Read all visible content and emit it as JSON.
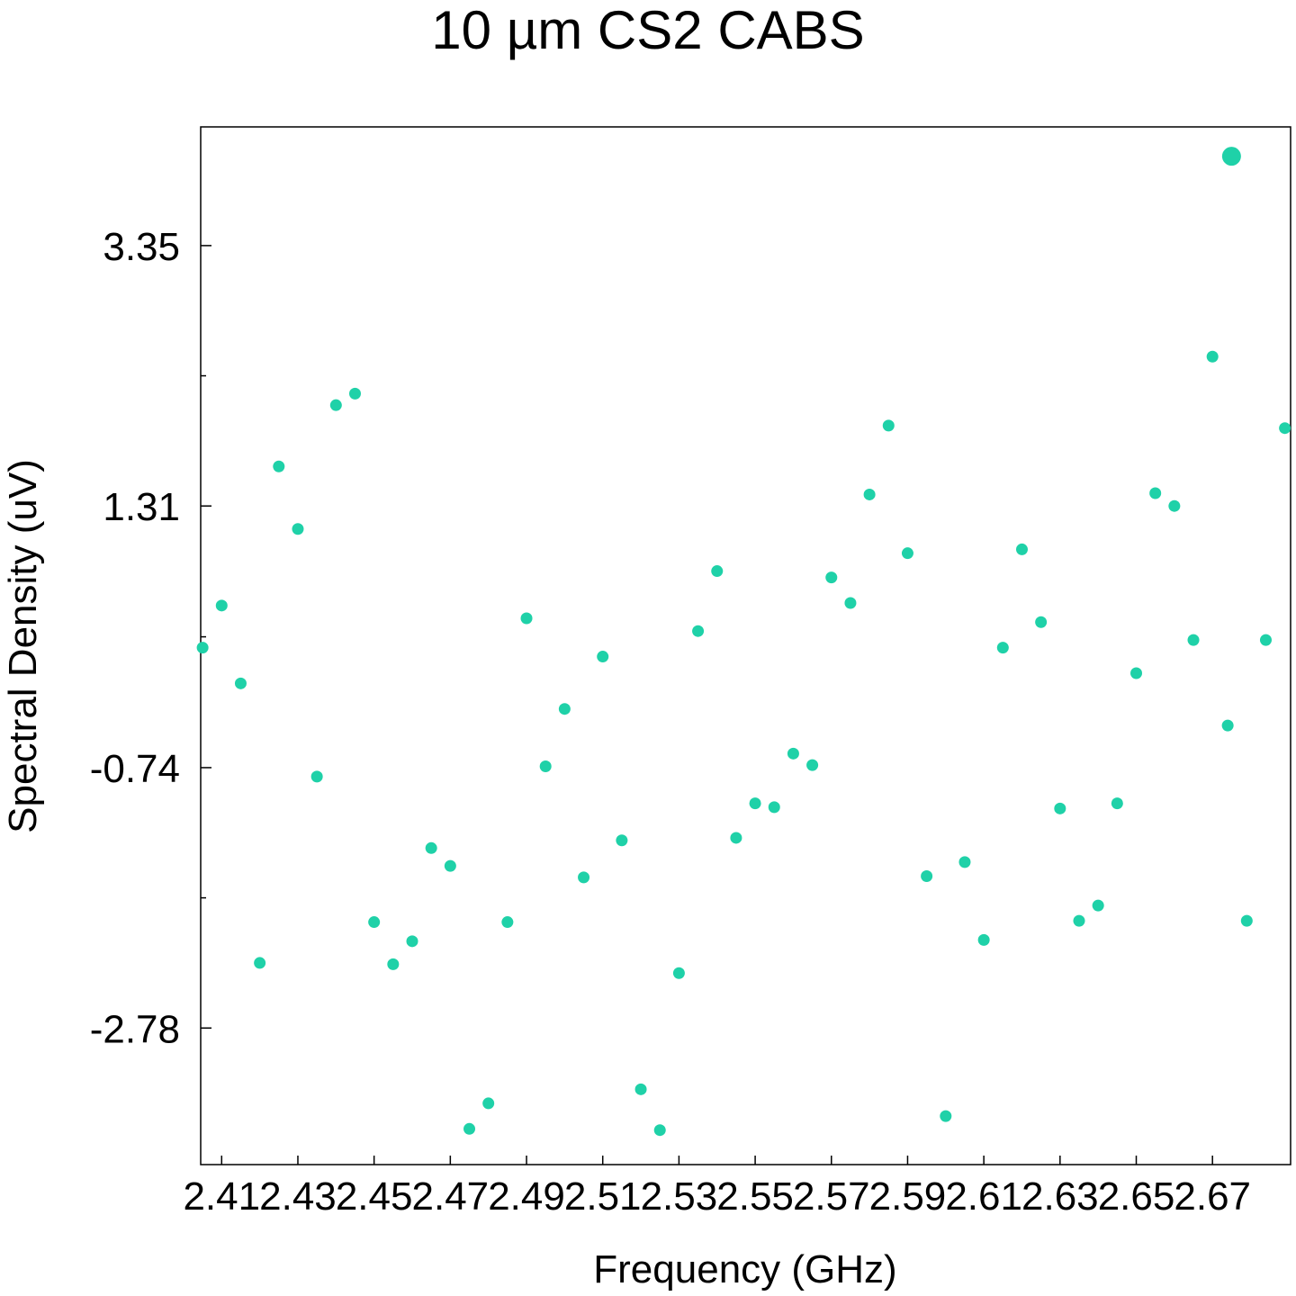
{
  "chart_data": {
    "type": "scatter",
    "title": "10 µm CS2 CABS",
    "xlabel": "Frequency (GHz)",
    "ylabel": "Spectral Density (uV)",
    "xlim": [
      2.4045,
      2.6905
    ],
    "ylim": [
      -3.85,
      4.28
    ],
    "x_ticks": [
      2.41,
      2.43,
      2.45,
      2.47,
      2.49,
      2.51,
      2.53,
      2.55,
      2.57,
      2.59,
      2.61,
      2.63,
      2.65,
      2.67
    ],
    "x_tick_labels": [
      "2.41",
      "2.43",
      "2.45",
      "2.47",
      "2.49",
      "2.51",
      "2.53",
      "2.55",
      "2.57",
      "2.59",
      "2.61",
      "2.63",
      "2.65",
      "2.67"
    ],
    "y_ticks": [
      3.35,
      1.31,
      -0.74,
      -2.78
    ],
    "y_tick_labels": [
      "3.35",
      "1.31",
      "-0.74",
      "-2.78"
    ],
    "y_minor_ticks": [
      2.33,
      0.285,
      -1.76
    ],
    "grid": false,
    "marker_color": "#1fd1a8",
    "series": [
      {
        "points": [
          [
            2.405,
            0.2
          ],
          [
            2.41,
            0.53
          ],
          [
            2.415,
            -0.08
          ],
          [
            2.42,
            -2.27
          ],
          [
            2.425,
            1.62
          ],
          [
            2.43,
            1.13
          ],
          [
            2.435,
            -0.81
          ],
          [
            2.44,
            2.1
          ],
          [
            2.445,
            2.19
          ],
          [
            2.45,
            -1.95
          ],
          [
            2.455,
            -2.28
          ],
          [
            2.46,
            -2.1
          ],
          [
            2.465,
            -1.37
          ],
          [
            2.47,
            -1.51
          ],
          [
            2.475,
            -3.57
          ],
          [
            2.48,
            -3.37
          ],
          [
            2.485,
            -1.95
          ],
          [
            2.49,
            0.43
          ],
          [
            2.495,
            -0.73
          ],
          [
            2.5,
            -0.28
          ],
          [
            2.505,
            -1.6
          ],
          [
            2.51,
            0.13
          ],
          [
            2.515,
            -1.31
          ],
          [
            2.52,
            -3.26
          ],
          [
            2.525,
            -3.58
          ],
          [
            2.53,
            -2.35
          ],
          [
            2.535,
            0.33
          ],
          [
            2.54,
            0.8
          ],
          [
            2.545,
            -1.29
          ],
          [
            2.55,
            -1.02
          ],
          [
            2.555,
            -1.05
          ],
          [
            2.56,
            -0.63
          ],
          [
            2.565,
            -0.72
          ],
          [
            2.57,
            0.75
          ],
          [
            2.575,
            0.55
          ],
          [
            2.58,
            1.4
          ],
          [
            2.585,
            1.94
          ],
          [
            2.59,
            0.94
          ],
          [
            2.595,
            -1.59
          ],
          [
            2.6,
            -3.47
          ],
          [
            2.605,
            -1.48
          ],
          [
            2.61,
            -2.09
          ],
          [
            2.615,
            0.2
          ],
          [
            2.62,
            0.97
          ],
          [
            2.625,
            0.4
          ],
          [
            2.63,
            -1.06
          ],
          [
            2.635,
            -1.94
          ],
          [
            2.64,
            -1.82
          ],
          [
            2.645,
            -1.02
          ],
          [
            2.65,
            0.0
          ],
          [
            2.655,
            1.41
          ],
          [
            2.66,
            1.31
          ],
          [
            2.665,
            0.26
          ],
          [
            2.67,
            2.48
          ],
          [
            2.674,
            -0.41
          ],
          [
            2.679,
            -1.94
          ],
          [
            2.684,
            0.26
          ],
          [
            2.689,
            1.92
          ]
        ]
      }
    ],
    "highlight_point": [
      2.675,
      4.05
    ]
  }
}
